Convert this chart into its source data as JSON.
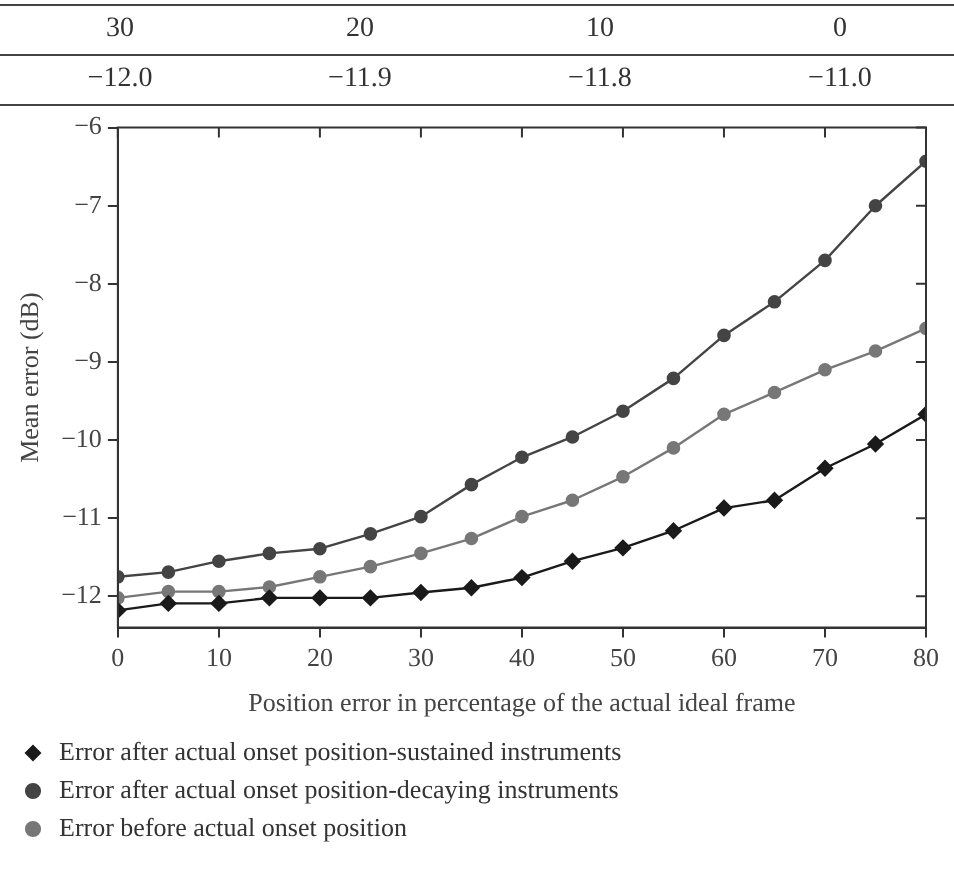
{
  "chart_data": {
    "type": "line",
    "xlabel": "Position error in percentage of the actual ideal frame",
    "ylabel": "Mean error (dB)",
    "annotations": [
      "30",
      "20",
      "10",
      "0",
      "−12.0",
      "−11.9",
      "−11.8",
      "−11.0"
    ],
    "x": [
      0,
      5,
      10,
      15,
      20,
      25,
      30,
      35,
      40,
      45,
      50,
      55,
      60,
      65,
      70,
      75,
      80
    ],
    "series": [
      {
        "name": "Error after actual onset position-sustained instruments",
        "color": "#1a1a1a",
        "marker": "diamond",
        "values": [
          -12.18,
          -12.09,
          -12.09,
          -12.02,
          -12.02,
          -12.02,
          -11.95,
          -11.89,
          -11.76,
          -11.55,
          -11.38,
          -11.16,
          -10.87,
          -10.77,
          -10.36,
          -10.05,
          -9.67
        ]
      },
      {
        "name": "Error after actual onset position-decaying instruments",
        "color": "#444444",
        "marker": "circle",
        "values": [
          -11.75,
          -11.69,
          -11.55,
          -11.45,
          -11.39,
          -11.2,
          -10.98,
          -10.57,
          -10.22,
          -9.96,
          -9.63,
          -9.21,
          -8.66,
          -8.23,
          -7.7,
          -7.0,
          -6.43
        ]
      },
      {
        "name": "Error before actual onset position",
        "color": "#777777",
        "marker": "circle",
        "values": [
          -12.02,
          -11.94,
          -11.94,
          -11.88,
          -11.75,
          -11.62,
          -11.45,
          -11.26,
          -10.98,
          -10.77,
          -10.47,
          -10.1,
          -9.67,
          -9.39,
          -9.1,
          -8.86,
          -8.57
        ]
      }
    ],
    "xlim": [
      0,
      80
    ],
    "xticks": [
      0,
      10,
      20,
      30,
      40,
      50,
      60,
      70,
      80
    ],
    "ylim": [
      -12.4,
      -6
    ],
    "yticks": [
      {
        "value": -12,
        "label": "−12"
      },
      {
        "value": -11,
        "label": "−11"
      },
      {
        "value": -10,
        "label": "−10"
      },
      {
        "value": -9,
        "label": "−9"
      },
      {
        "value": -8,
        "label": "−8"
      },
      {
        "value": -7,
        "label": "−7"
      },
      {
        "value": -6,
        "label": "−6"
      }
    ],
    "grid": false,
    "legend": "bottom",
    "line_style": "solid"
  }
}
